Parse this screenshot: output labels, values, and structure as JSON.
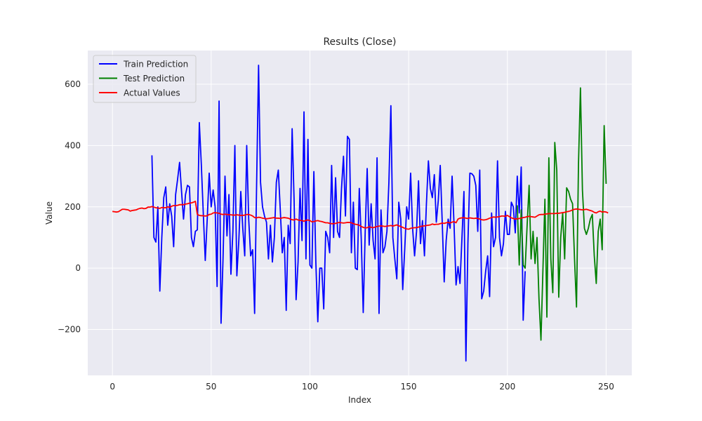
{
  "chart_data": {
    "type": "line",
    "title": "Results (Close)",
    "xlabel": "Index",
    "ylabel": "Value",
    "xlim": [
      -12.5,
      263
    ],
    "ylim": [
      -350,
      710
    ],
    "x_ticks": [
      0,
      50,
      100,
      150,
      200,
      250
    ],
    "y_ticks": [
      -200,
      0,
      200,
      400,
      600
    ],
    "y_tick_labels": [
      "−200",
      "0",
      "200",
      "400",
      "600"
    ],
    "grid": true,
    "legend_position": "upper-left",
    "background_color": "#eaeaf2",
    "series": [
      {
        "name": "Train Prediction",
        "color": "#0000ff",
        "x_start": 20,
        "values": [
          368,
          100,
          85,
          200,
          -75,
          100,
          230,
          265,
          140,
          210,
          170,
          70,
          240,
          290,
          345,
          250,
          160,
          240,
          270,
          265,
          100,
          70,
          120,
          125,
          475,
          340,
          180,
          25,
          160,
          310,
          200,
          255,
          200,
          -60,
          545,
          -180,
          30,
          300,
          105,
          240,
          -20,
          120,
          400,
          -25,
          90,
          250,
          130,
          40,
          400,
          160,
          40,
          60,
          -148,
          270,
          662,
          280,
          200,
          170,
          150,
          30,
          140,
          20,
          100,
          280,
          320,
          190,
          50,
          100,
          -138,
          140,
          80,
          455,
          220,
          -103,
          20,
          260,
          90,
          510,
          30,
          420,
          10,
          0,
          315,
          20,
          -175,
          0,
          0,
          -133,
          120,
          100,
          50,
          335,
          100,
          295,
          120,
          100,
          260,
          365,
          170,
          430,
          420,
          50,
          215,
          0,
          -5,
          260,
          95,
          -145,
          120,
          325,
          75,
          210,
          90,
          30,
          360,
          -148,
          190,
          50,
          70,
          120,
          280,
          530,
          100,
          30,
          -35,
          215,
          160,
          -70,
          60,
          200,
          160,
          310,
          130,
          40,
          120,
          285,
          80,
          155,
          40,
          210,
          350,
          260,
          230,
          305,
          150,
          220,
          335,
          150,
          -45,
          90,
          160,
          130,
          300,
          140,
          -55,
          5,
          -50,
          100,
          250,
          -303,
          80,
          310,
          308,
          300,
          270,
          120,
          320,
          -100,
          -75,
          -10,
          40,
          -93,
          180,
          70,
          100,
          350,
          100,
          40,
          80,
          185,
          110,
          110,
          215,
          200,
          115,
          300,
          180,
          330,
          -170,
          -10
        ]
      },
      {
        "name": "Test Prediction",
        "color": "#008000",
        "x_start": 205,
        "values": [
          205,
          10,
          190,
          10,
          0,
          140,
          270,
          30,
          120,
          15,
          100,
          -100,
          -235,
          -5,
          225,
          -160,
          360,
          30,
          -80,
          410,
          320,
          -95,
          100,
          180,
          30,
          262,
          250,
          225,
          210,
          30,
          -127,
          340,
          588,
          255,
          130,
          110,
          130,
          160,
          175,
          40,
          -50,
          120,
          160,
          60,
          465,
          275
        ]
      },
      {
        "name": "Actual Values",
        "color": "#ff0000",
        "x_start": 0,
        "values": [
          185,
          184,
          183,
          184,
          188,
          192,
          192,
          191,
          190,
          186,
          188,
          189,
          190,
          193,
          195,
          196,
          194,
          195,
          199,
          199,
          201,
          199,
          197,
          196,
          195,
          198,
          197,
          197,
          200,
          198,
          202,
          204,
          204,
          205,
          207,
          207,
          207,
          209,
          210,
          212,
          213,
          215,
          218,
          175,
          172,
          171,
          171,
          170,
          171,
          175,
          176,
          180,
          181,
          180,
          179,
          176,
          175,
          176,
          175,
          174,
          174,
          173,
          173,
          174,
          173,
          172,
          172,
          173,
          175,
          175,
          173,
          170,
          165,
          164,
          166,
          165,
          163,
          162,
          161,
          162,
          163,
          164,
          165,
          163,
          163,
          162,
          164,
          165,
          164,
          163,
          160,
          158,
          157,
          160,
          157,
          156,
          155,
          153,
          156,
          157,
          155,
          151,
          152,
          154,
          155,
          153,
          152,
          150,
          148,
          148,
          146,
          145,
          145,
          146,
          148,
          149,
          148,
          147,
          148,
          149,
          149,
          148,
          145,
          143,
          142,
          140,
          136,
          133,
          131,
          132,
          135,
          133,
          132,
          134,
          136,
          137,
          138,
          137,
          136,
          137,
          138,
          139,
          137,
          139,
          141,
          138,
          136,
          133,
          130,
          128,
          127,
          130,
          131,
          132,
          132,
          134,
          136,
          137,
          138,
          139,
          140,
          141,
          144,
          142,
          143,
          143,
          145,
          147,
          146,
          148,
          149,
          147,
          150,
          152,
          148,
          160,
          163,
          164,
          165,
          163,
          162,
          164,
          163,
          162,
          163,
          162,
          160,
          158,
          157,
          158,
          160,
          163,
          165,
          167,
          166,
          167,
          168,
          170,
          170,
          169,
          172,
          168,
          164,
          162,
          160,
          161,
          162,
          163,
          165,
          166,
          168,
          169,
          168,
          167,
          166,
          170,
          174,
          175,
          175,
          176,
          177,
          178,
          178,
          178,
          178,
          179,
          179,
          180,
          181,
          182,
          184,
          185,
          187,
          190,
          192,
          193,
          192,
          191,
          190,
          191,
          192,
          190,
          188,
          186,
          182,
          180,
          184,
          186,
          183,
          184,
          183,
          180
        ]
      }
    ]
  }
}
